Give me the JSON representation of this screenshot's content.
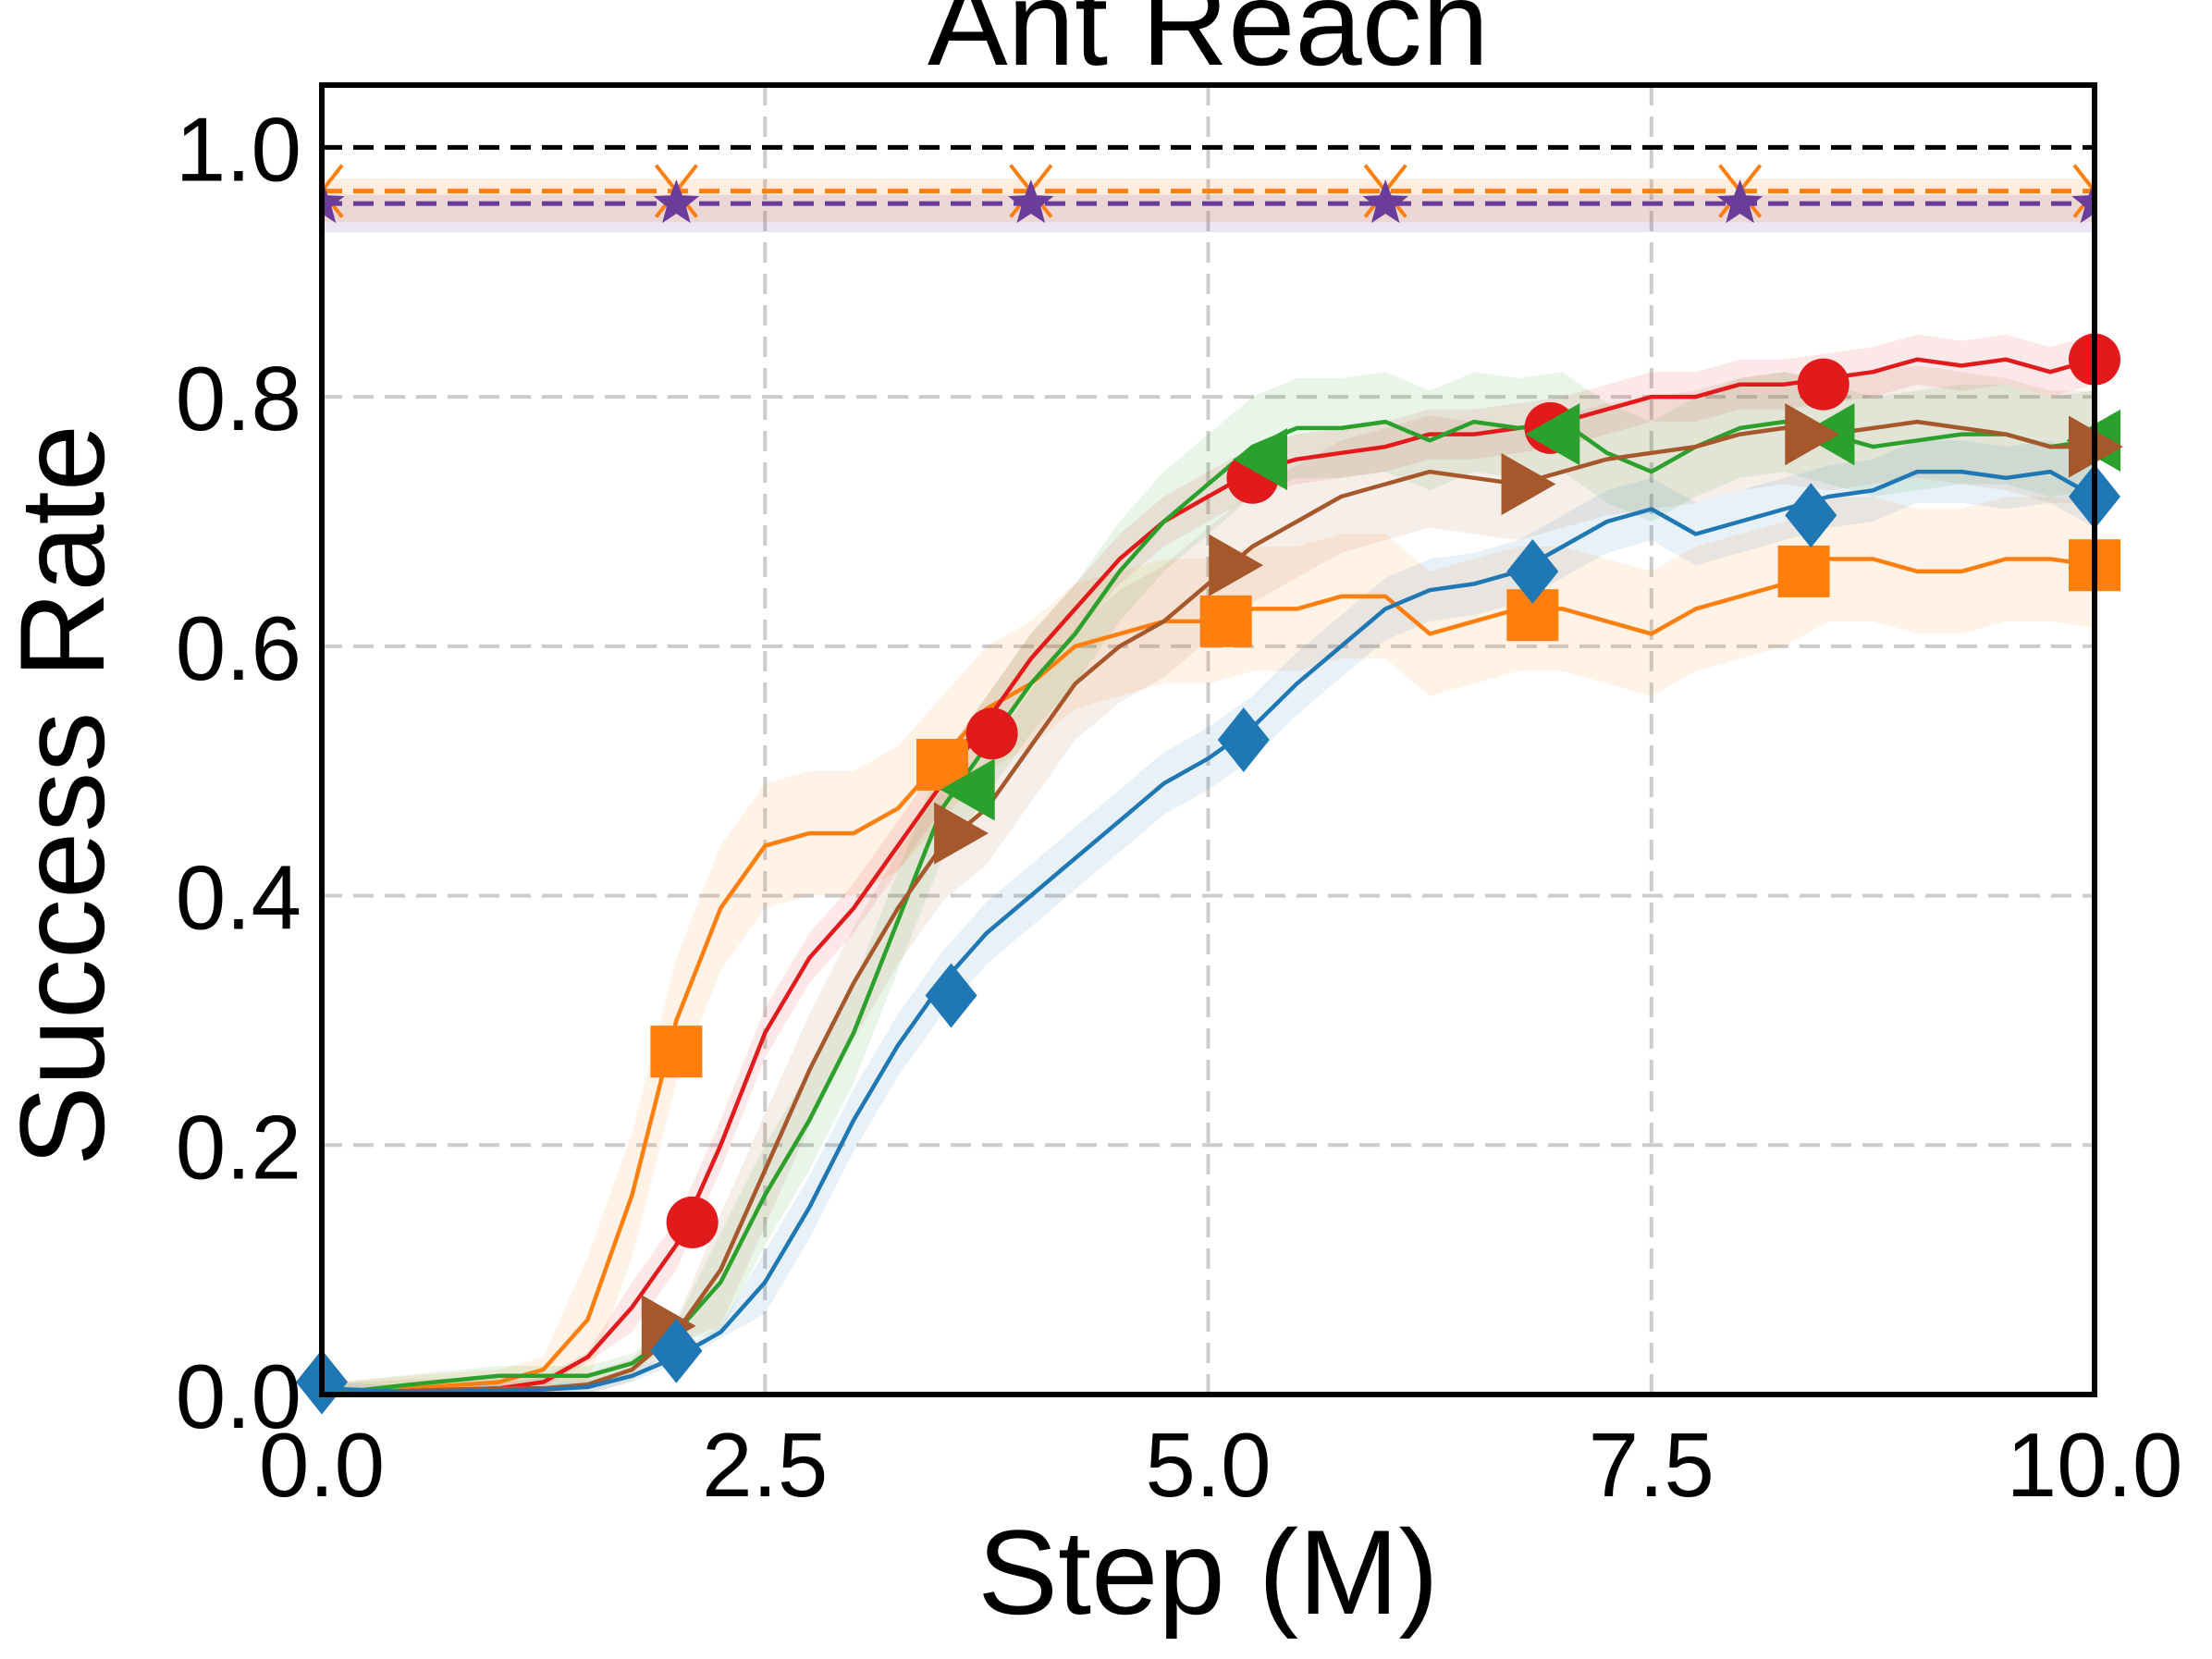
{
  "chart_data": {
    "type": "line",
    "title": "Ant Reach",
    "xlabel": "Step (M)",
    "ylabel": "Success Rate",
    "xlim": [
      0,
      10
    ],
    "ylim": [
      0,
      1.05
    ],
    "grid": true,
    "xticks": [
      0,
      2.5,
      5,
      7.5,
      10
    ],
    "xtick_labels": [
      "0.0",
      "2.5",
      "5.0",
      "7.5",
      "10.0"
    ],
    "yticks": [
      0,
      0.2,
      0.4,
      0.6,
      0.8,
      1.0
    ],
    "ytick_labels": [
      "0.0",
      "0.2",
      "0.4",
      "0.6",
      "0.8",
      "1.0"
    ],
    "reference_lines": [
      {
        "name": "upper-bound",
        "y": 1.0,
        "color": "#000000",
        "style": "dashed",
        "marker": "none"
      },
      {
        "name": "orange-baseline",
        "y": 0.965,
        "band": [
          0.94,
          0.975
        ],
        "color": "#ff7f0e",
        "style": "dashed",
        "marker": "x",
        "marker_x": [
          0,
          2,
          4,
          6,
          8,
          10
        ]
      },
      {
        "name": "purple-baseline",
        "y": 0.955,
        "band": [
          0.932,
          0.962
        ],
        "color": "#6a3d9a",
        "style": "dashed",
        "marker": "star",
        "marker_x": [
          0,
          2,
          4,
          6,
          8,
          10
        ]
      }
    ],
    "series": [
      {
        "name": "orange-square",
        "color": "#ff7f0e",
        "marker": "square",
        "x": [
          0,
          0.5,
          1.0,
          1.25,
          1.5,
          1.75,
          2.0,
          2.25,
          2.5,
          2.75,
          3.0,
          3.25,
          3.5,
          3.75,
          4.0,
          4.25,
          4.5,
          4.75,
          5.0,
          5.25,
          5.5,
          5.75,
          6.0,
          6.25,
          6.5,
          6.75,
          7.0,
          7.25,
          7.5,
          7.75,
          8.0,
          8.25,
          8.5,
          8.75,
          9.0,
          9.25,
          9.5,
          9.75,
          10.0
        ],
        "y": [
          0,
          0.005,
          0.01,
          0.02,
          0.06,
          0.16,
          0.3,
          0.39,
          0.44,
          0.45,
          0.45,
          0.47,
          0.51,
          0.55,
          0.57,
          0.6,
          0.61,
          0.62,
          0.62,
          0.63,
          0.63,
          0.64,
          0.64,
          0.61,
          0.62,
          0.63,
          0.63,
          0.62,
          0.61,
          0.63,
          0.64,
          0.65,
          0.67,
          0.67,
          0.66,
          0.66,
          0.67,
          0.67,
          0.665
        ],
        "band": 0.05,
        "marker_points": [
          [
            2.0,
            0.275
          ],
          [
            3.5,
            0.505
          ],
          [
            5.1,
            0.62
          ],
          [
            6.83,
            0.625
          ],
          [
            8.36,
            0.66
          ],
          [
            10.0,
            0.665
          ]
        ]
      },
      {
        "name": "red-circle",
        "color": "#e31a1c",
        "marker": "circle",
        "x": [
          0,
          0.5,
          1.0,
          1.25,
          1.5,
          1.75,
          2.0,
          2.25,
          2.5,
          2.75,
          3.0,
          3.25,
          3.5,
          3.75,
          4.0,
          4.25,
          4.5,
          4.75,
          5.0,
          5.25,
          5.5,
          5.75,
          6.0,
          6.25,
          6.5,
          6.75,
          7.0,
          7.25,
          7.5,
          7.75,
          8.0,
          8.25,
          8.5,
          8.75,
          9.0,
          9.25,
          9.5,
          9.75,
          10.0
        ],
        "y": [
          0,
          0.003,
          0.005,
          0.01,
          0.03,
          0.07,
          0.12,
          0.2,
          0.29,
          0.35,
          0.39,
          0.44,
          0.49,
          0.54,
          0.59,
          0.63,
          0.67,
          0.7,
          0.72,
          0.74,
          0.75,
          0.755,
          0.76,
          0.77,
          0.77,
          0.775,
          0.78,
          0.79,
          0.8,
          0.8,
          0.81,
          0.81,
          0.815,
          0.82,
          0.83,
          0.825,
          0.83,
          0.82,
          0.83
        ],
        "band": 0.02,
        "marker_points": [
          [
            2.09,
            0.138
          ],
          [
            3.78,
            0.53
          ],
          [
            5.25,
            0.735
          ],
          [
            6.93,
            0.775
          ],
          [
            8.47,
            0.81
          ],
          [
            10.0,
            0.83
          ]
        ]
      },
      {
        "name": "green-left-triangle",
        "color": "#2ca02c",
        "marker": "triangle-left",
        "x": [
          0,
          0.5,
          1.0,
          1.25,
          1.5,
          1.75,
          2.0,
          2.25,
          2.5,
          2.75,
          3.0,
          3.25,
          3.5,
          3.75,
          4.0,
          4.25,
          4.5,
          4.75,
          5.0,
          5.25,
          5.5,
          5.75,
          6.0,
          6.25,
          6.5,
          6.75,
          7.0,
          7.25,
          7.5,
          7.75,
          8.0,
          8.25,
          8.5,
          8.75,
          9.0,
          9.25,
          9.5,
          9.75,
          10.0
        ],
        "y": [
          0,
          0.008,
          0.015,
          0.015,
          0.015,
          0.025,
          0.05,
          0.09,
          0.16,
          0.22,
          0.29,
          0.38,
          0.47,
          0.52,
          0.57,
          0.61,
          0.66,
          0.7,
          0.73,
          0.76,
          0.775,
          0.775,
          0.78,
          0.765,
          0.78,
          0.775,
          0.78,
          0.755,
          0.74,
          0.76,
          0.775,
          0.78,
          0.77,
          0.76,
          0.765,
          0.77,
          0.77,
          0.76,
          0.765
        ],
        "band": 0.04,
        "marker_points": [
          [
            3.65,
            0.485
          ],
          [
            5.3,
            0.75
          ],
          [
            6.95,
            0.77
          ],
          [
            8.5,
            0.77
          ],
          [
            10.0,
            0.765
          ]
        ]
      },
      {
        "name": "brown-right-triangle",
        "color": "#a6582c",
        "marker": "triangle-right",
        "x": [
          0,
          0.5,
          1.0,
          1.25,
          1.5,
          1.75,
          2.0,
          2.25,
          2.5,
          2.75,
          3.0,
          3.25,
          3.5,
          3.75,
          4.0,
          4.25,
          4.5,
          4.75,
          5.0,
          5.25,
          5.5,
          5.75,
          6.0,
          6.25,
          6.5,
          6.75,
          7.0,
          7.25,
          7.5,
          7.75,
          8.0,
          8.25,
          8.5,
          8.75,
          9.0,
          9.25,
          9.5,
          9.75,
          10.0
        ],
        "y": [
          0,
          0.003,
          0.005,
          0.005,
          0.008,
          0.02,
          0.05,
          0.1,
          0.18,
          0.26,
          0.33,
          0.39,
          0.44,
          0.47,
          0.52,
          0.57,
          0.6,
          0.62,
          0.65,
          0.68,
          0.7,
          0.72,
          0.73,
          0.74,
          0.735,
          0.73,
          0.74,
          0.75,
          0.755,
          0.76,
          0.77,
          0.775,
          0.77,
          0.775,
          0.78,
          0.775,
          0.77,
          0.76,
          0.76
        ],
        "band": 0.045,
        "marker_points": [
          [
            1.95,
            0.055
          ],
          [
            3.6,
            0.45
          ],
          [
            5.15,
            0.665
          ],
          [
            6.8,
            0.73
          ],
          [
            8.4,
            0.77
          ],
          [
            10.0,
            0.76
          ]
        ]
      },
      {
        "name": "blue-diamond",
        "color": "#1f77b4",
        "marker": "diamond",
        "x": [
          0,
          0.5,
          1.0,
          1.25,
          1.5,
          1.75,
          2.0,
          2.25,
          2.5,
          2.75,
          3.0,
          3.25,
          3.5,
          3.75,
          4.0,
          4.25,
          4.5,
          4.75,
          5.0,
          5.25,
          5.5,
          5.75,
          6.0,
          6.25,
          6.5,
          6.75,
          7.0,
          7.25,
          7.5,
          7.75,
          8.0,
          8.25,
          8.5,
          8.75,
          9.0,
          9.25,
          9.5,
          9.75,
          10.0
        ],
        "y": [
          0.005,
          0.002,
          0.003,
          0.004,
          0.006,
          0.015,
          0.03,
          0.05,
          0.09,
          0.15,
          0.22,
          0.28,
          0.33,
          0.37,
          0.4,
          0.43,
          0.46,
          0.49,
          0.51,
          0.535,
          0.57,
          0.6,
          0.63,
          0.645,
          0.65,
          0.66,
          0.68,
          0.7,
          0.71,
          0.69,
          0.7,
          0.71,
          0.72,
          0.725,
          0.74,
          0.74,
          0.735,
          0.74,
          0.72
        ],
        "band": 0.025,
        "marker_points": [
          [
            0.0,
            0.01
          ],
          [
            2.0,
            0.035
          ],
          [
            3.55,
            0.32
          ],
          [
            5.2,
            0.525
          ],
          [
            6.83,
            0.66
          ],
          [
            8.4,
            0.705
          ],
          [
            10.0,
            0.72
          ]
        ]
      }
    ]
  }
}
